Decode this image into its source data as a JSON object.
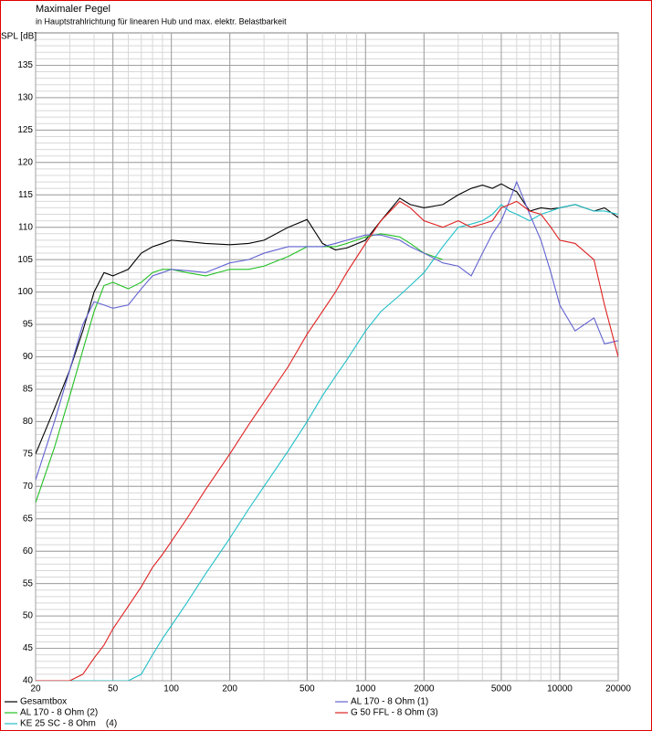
{
  "chart_data": {
    "type": "line",
    "title": "Maximaler Pegel",
    "subtitle": "in Hauptstrahlrichtung für linearen Hub und max. elektr. Belastbarkeit",
    "ylabel": "SPL [dB]",
    "xlog": true,
    "grid": true,
    "xlim": [
      20,
      20000
    ],
    "ylim": [
      40,
      140
    ],
    "xticks": [
      20,
      50,
      100,
      200,
      500,
      1000,
      2000,
      5000,
      10000,
      20000
    ],
    "yticks": [
      40,
      45,
      50,
      55,
      60,
      65,
      70,
      75,
      80,
      85,
      90,
      95,
      100,
      105,
      110,
      115,
      120,
      125,
      130,
      135
    ],
    "x": [
      20,
      25,
      30,
      35,
      40,
      45,
      50,
      60,
      70,
      80,
      90,
      100,
      120,
      150,
      200,
      250,
      300,
      400,
      500,
      600,
      700,
      800,
      1000,
      1200,
      1500,
      1700,
      2000,
      2500,
      3000,
      3500,
      4000,
      4500,
      5000,
      5500,
      6000,
      7000,
      8000,
      9000,
      10000,
      12000,
      15000,
      17000,
      20000
    ],
    "series": [
      {
        "name": "Gesamtbox",
        "color": "#000000",
        "values": [
          75,
          82,
          88,
          94,
          100,
          103,
          102.5,
          103.5,
          106,
          107,
          107.5,
          108,
          107.8,
          107.5,
          107.3,
          107.5,
          108,
          110,
          111.2,
          107.5,
          106.5,
          106.8,
          108,
          111,
          114.5,
          113.5,
          113,
          113.5,
          115,
          116,
          116.5,
          116,
          116.7,
          116,
          115.5,
          112.5,
          113,
          112.8,
          113,
          113.5,
          112.5,
          113,
          111.5
        ]
      },
      {
        "name": "AL 170 - 8 Ohm (2)",
        "color": "#22c022",
        "values": [
          67.5,
          76,
          84,
          91,
          97,
          101,
          101.5,
          100.5,
          101.5,
          103,
          103.5,
          103.5,
          103,
          102.5,
          103.5,
          103.5,
          104,
          105.5,
          107,
          107,
          107,
          107.5,
          108.5,
          109,
          108.5,
          107.5,
          106,
          105,
          null,
          null,
          null,
          null,
          null,
          null,
          null,
          null,
          null,
          null,
          null,
          null,
          null,
          null,
          null
        ]
      },
      {
        "name": "KE 25 SC - 8 Ohm    (4)",
        "color": "#20c0c8",
        "values": [
          40,
          40,
          40,
          40,
          40,
          40,
          40,
          40,
          41,
          44,
          46.5,
          48.5,
          52,
          56.5,
          62,
          66.5,
          70,
          75.5,
          80,
          84,
          87,
          89.5,
          94,
          97,
          99.5,
          101,
          103,
          107,
          110,
          110.5,
          111,
          112,
          113.5,
          112.5,
          112,
          111,
          112,
          112.5,
          113,
          113.5,
          112.5,
          112.5,
          112
        ]
      },
      {
        "name": "AL 170 - 8 Ohm (1)",
        "color": "#6262d2",
        "values": [
          71,
          80,
          88,
          95,
          98.5,
          98,
          97.5,
          98,
          100.5,
          102.5,
          103,
          103.5,
          103.3,
          103,
          104.5,
          105,
          106,
          107,
          107,
          107,
          107.5,
          108,
          108.8,
          108.8,
          108,
          107,
          106,
          104.5,
          104,
          102.5,
          106,
          109,
          111,
          114,
          117,
          112,
          108,
          103,
          98,
          94,
          96,
          92,
          92.5
        ]
      },
      {
        "name": "G 50 FFL - 8 Ohm (3)",
        "color": "#e02020",
        "values": [
          40,
          40,
          40,
          41,
          43.5,
          45.5,
          48,
          51.5,
          54.5,
          57.5,
          59.5,
          61.5,
          65,
          69.5,
          75,
          79.5,
          83,
          88.5,
          93.5,
          97,
          100,
          103,
          107.5,
          111,
          114,
          113,
          111,
          110,
          111,
          110,
          110.5,
          111,
          113,
          113.5,
          114,
          112.5,
          112,
          110,
          108,
          107.5,
          105,
          98,
          90
        ]
      }
    ]
  }
}
